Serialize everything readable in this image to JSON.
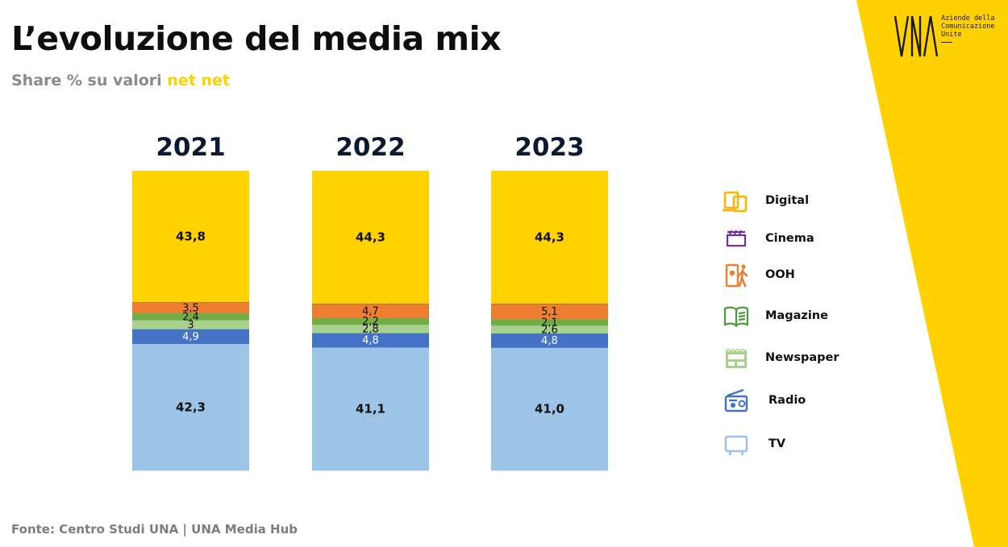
{
  "title": "L’evoluzione del media mix",
  "subtitle_prefix": "Share % su valori",
  "subtitle_highlight": "net net",
  "source": "Fonte: Centro Studi UNA | UNA Media Hub",
  "logo": {
    "mark": "UNA",
    "tagline_lines": [
      "Aziende della",
      "Comunicazione",
      "Unite"
    ]
  },
  "colors": {
    "accent_yellow": "#ffd100",
    "Digital": "#ffd200",
    "Cinema": "#7030a0",
    "OOH": "#ed7d31",
    "Magazine": "#70ad47",
    "Newspaper": "#a9d18e",
    "Radio": "#4472c4",
    "TV": "#9dc3e6"
  },
  "chart_data": {
    "type": "bar",
    "stacked": true,
    "normalized_percent": true,
    "categories": [
      "2021",
      "2022",
      "2023"
    ],
    "series": [
      {
        "name": "TV",
        "values": [
          42.3,
          41.1,
          41.0
        ],
        "labels": [
          "42,3",
          "41,1",
          "41,0"
        ]
      },
      {
        "name": "Radio",
        "values": [
          4.9,
          4.8,
          4.8
        ],
        "labels": [
          "4,9",
          "4,8",
          "4,8"
        ]
      },
      {
        "name": "Newspaper",
        "values": [
          3,
          2.8,
          2.6
        ],
        "labels": [
          "3",
          "2,8",
          "2,6"
        ]
      },
      {
        "name": "Magazine",
        "values": [
          2.4,
          2.2,
          2.1
        ],
        "labels": [
          "2,4",
          "2,2",
          "2,1"
        ]
      },
      {
        "name": "OOH",
        "values": [
          3.5,
          4.7,
          5.1
        ],
        "labels": [
          "3,5",
          "4,7",
          "5,1"
        ]
      },
      {
        "name": "Cinema",
        "values": [
          0.1,
          0.1,
          0.1
        ],
        "labels": [
          "",
          "",
          ""
        ]
      },
      {
        "name": "Digital",
        "values": [
          43.8,
          44.3,
          44.3
        ],
        "labels": [
          "43,8",
          "44,3",
          "44,3"
        ]
      }
    ],
    "legend": [
      "Digital",
      "Cinema",
      "OOH",
      "Magazine",
      "Newspaper",
      "Radio",
      "TV"
    ],
    "legend_position": "right",
    "grid": false,
    "xlabel": "",
    "ylabel": ""
  },
  "icons": {
    "Digital": "digital-devices-icon",
    "Cinema": "clapperboard-icon",
    "OOH": "billboard-person-icon",
    "Magazine": "open-book-icon",
    "Newspaper": "newspaper-icon",
    "Radio": "radio-icon",
    "TV": "tv-icon"
  }
}
